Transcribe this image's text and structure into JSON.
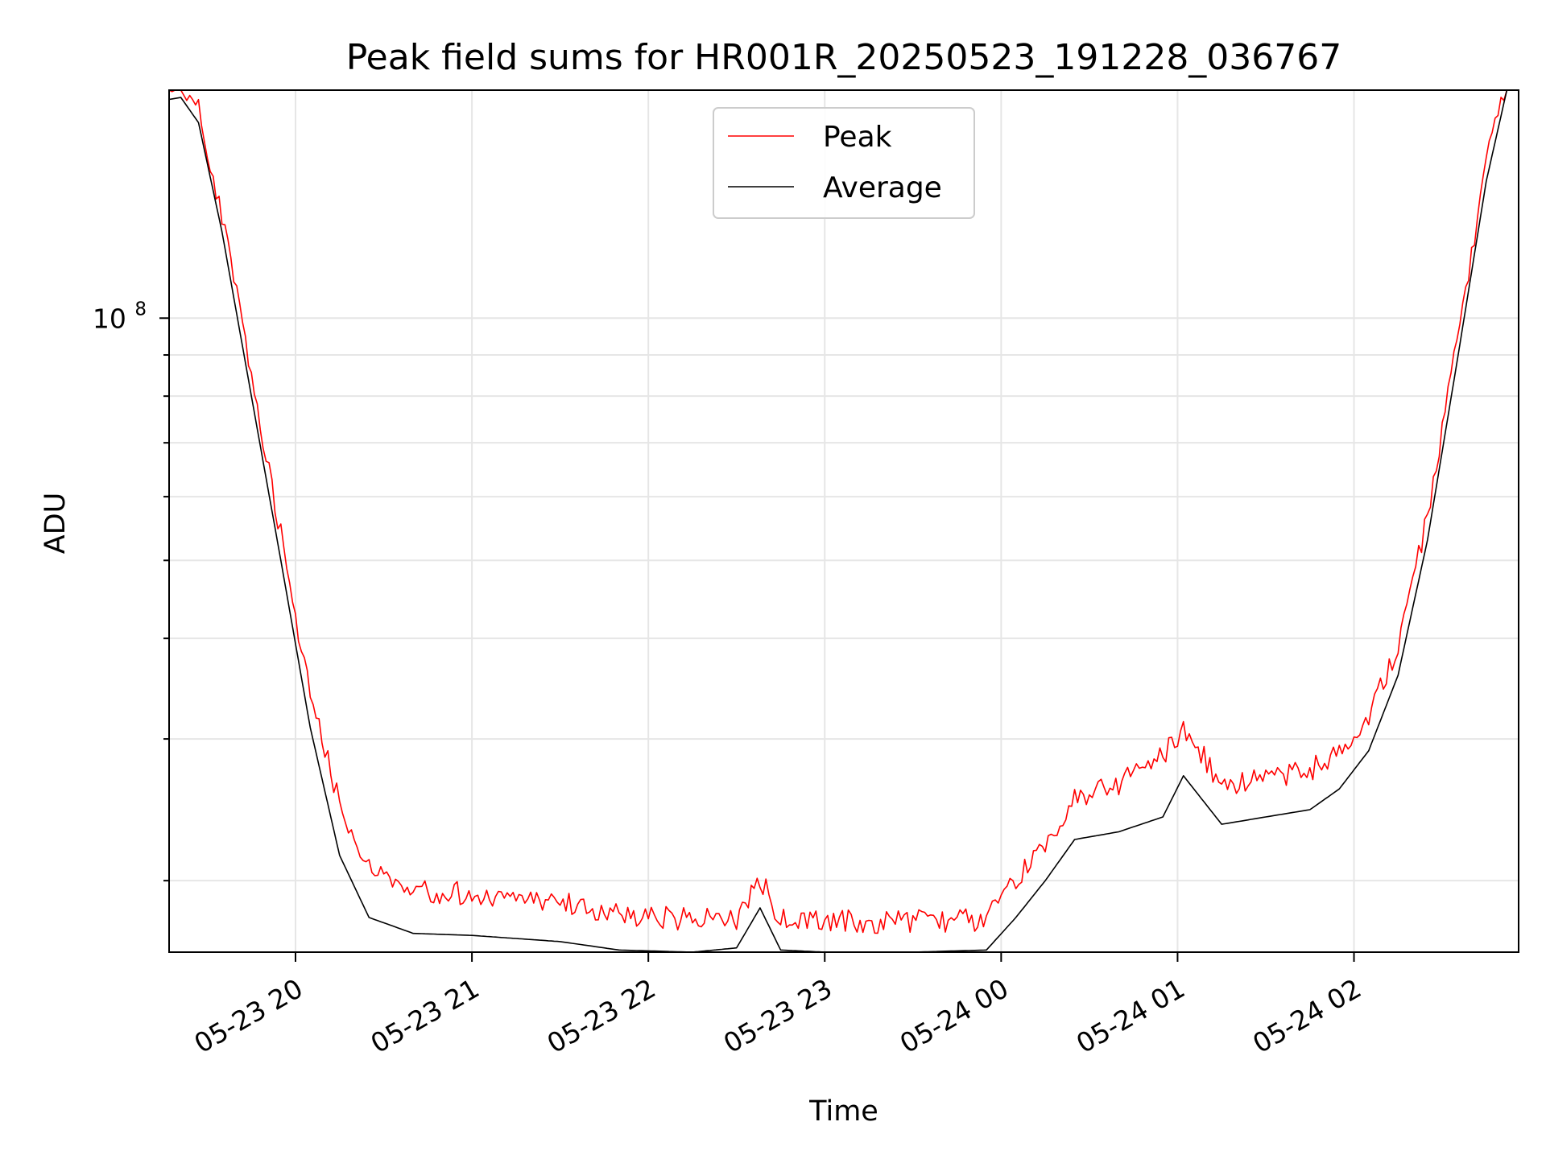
{
  "chart_data": {
    "type": "line",
    "title": "Peak field sums for HR001R_20250523_191228_036767",
    "xlabel": "Time",
    "ylabel": "ADU",
    "y_scale": "log",
    "y_tick": {
      "mantissa": "10",
      "exponent": "8",
      "value": 100000000
    },
    "ylim": [
      16300000,
      192000000
    ],
    "xlim": [
      "2025-05-23 19:17",
      "2025-05-24 02:56"
    ],
    "x_ticks": [
      "05-23 20",
      "05-23 21",
      "05-23 22",
      "05-23 23",
      "05-24 00",
      "05-24 01",
      "05-24 02"
    ],
    "x_tick_times": [
      "2025-05-23 20:00",
      "2025-05-23 21:00",
      "2025-05-23 22:00",
      "2025-05-23 23:00",
      "2025-05-24 00:00",
      "2025-05-24 01:00",
      "2025-05-24 02:00"
    ],
    "grid": true,
    "legend": {
      "placement": "upper-center"
    },
    "series": [
      {
        "name": "Peak",
        "color": "#ff0000",
        "noisy": true,
        "times": [
          "2025-05-23 19:17",
          "2025-05-23 19:21",
          "2025-05-23 19:27",
          "2025-05-23 19:35",
          "2025-05-23 19:45",
          "2025-05-23 19:55",
          "2025-05-23 20:05",
          "2025-05-23 20:15",
          "2025-05-23 20:25",
          "2025-05-23 20:40",
          "2025-05-23 21:00",
          "2025-05-23 21:30",
          "2025-05-23 21:50",
          "2025-05-23 22:15",
          "2025-05-23 22:30",
          "2025-05-23 22:38",
          "2025-05-23 22:45",
          "2025-05-23 23:00",
          "2025-05-23 23:30",
          "2025-05-23 23:55",
          "2025-05-24 00:05",
          "2025-05-24 00:15",
          "2025-05-24 00:25",
          "2025-05-24 00:40",
          "2025-05-24 00:55",
          "2025-05-24 01:02",
          "2025-05-24 01:15",
          "2025-05-24 01:30",
          "2025-05-24 01:45",
          "2025-05-24 01:55",
          "2025-05-24 02:05",
          "2025-05-24 02:15",
          "2025-05-24 02:25",
          "2025-05-24 02:35",
          "2025-05-24 02:45",
          "2025-05-24 02:52"
        ],
        "values": [
          188000000,
          189000000,
          176000000,
          130000000,
          82000000,
          52000000,
          33000000,
          24000000,
          20000000,
          18800000,
          18600000,
          18200000,
          17600000,
          17300000,
          17300000,
          19500000,
          17300000,
          17200000,
          17200000,
          17300000,
          19500000,
          21500000,
          24500000,
          25500000,
          27500000,
          30000000,
          25500000,
          26000000,
          26500000,
          28000000,
          31000000,
          38000000,
          55000000,
          90000000,
          150000000,
          192000000
        ]
      },
      {
        "name": "Average",
        "color": "#000000",
        "noisy": false,
        "times": [
          "2025-05-23 19:17",
          "2025-05-23 19:21",
          "2025-05-23 19:27",
          "2025-05-23 19:35",
          "2025-05-23 19:45",
          "2025-05-23 19:55",
          "2025-05-23 20:05",
          "2025-05-23 20:15",
          "2025-05-23 20:25",
          "2025-05-23 20:40",
          "2025-05-23 21:00",
          "2025-05-23 21:30",
          "2025-05-23 21:50",
          "2025-05-23 22:15",
          "2025-05-23 22:30",
          "2025-05-23 22:38",
          "2025-05-23 22:45",
          "2025-05-23 23:00",
          "2025-05-23 23:30",
          "2025-05-23 23:55",
          "2025-05-24 00:05",
          "2025-05-24 00:15",
          "2025-05-24 00:25",
          "2025-05-24 00:40",
          "2025-05-24 00:55",
          "2025-05-24 01:02",
          "2025-05-24 01:15",
          "2025-05-24 01:30",
          "2025-05-24 01:45",
          "2025-05-24 01:55",
          "2025-05-24 02:05",
          "2025-05-24 02:15",
          "2025-05-24 02:25",
          "2025-05-24 02:35",
          "2025-05-24 02:45",
          "2025-05-24 02:52"
        ],
        "values": [
          187000000,
          188000000,
          175000000,
          128000000,
          80000000,
          50000000,
          31000000,
          21500000,
          18000000,
          17200000,
          17100000,
          16800000,
          16400000,
          16300000,
          16500000,
          18500000,
          16400000,
          16300000,
          16300000,
          16400000,
          18000000,
          20000000,
          22500000,
          23000000,
          24000000,
          27000000,
          23500000,
          24000000,
          24500000,
          26000000,
          29000000,
          36000000,
          53000000,
          88000000,
          148000000,
          192000000
        ]
      }
    ]
  }
}
